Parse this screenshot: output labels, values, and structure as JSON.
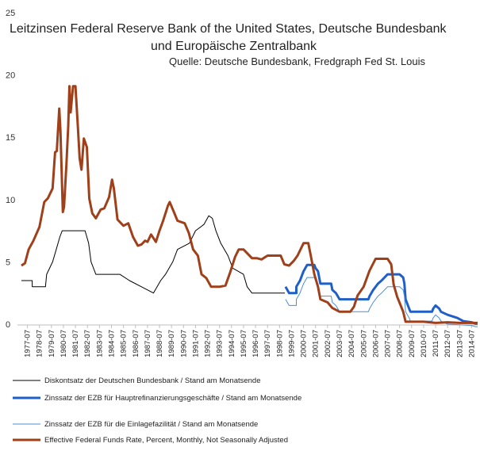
{
  "title_line1": "Leitzinsen Federal Reserve Bank of the United States, Deutsche Bundesbank",
  "title_line2": "und Europäische Zentralbank",
  "source": "Quelle: Deutsche Bundesbank, Fredgraph Fed St. Louis",
  "chart_data": {
    "type": "line",
    "title": "Leitzinsen Federal Reserve Bank of the United States, Deutsche Bundesbank und Europäische Zentralbank",
    "ylim": [
      0,
      25
    ],
    "yticks": [
      0,
      5,
      10,
      15,
      20,
      25
    ],
    "xlim": [
      1977.0,
      2015.0
    ],
    "x_tick_labels": [
      "1977-07",
      "1978-07",
      "1979-07",
      "1980-07",
      "1981-07",
      "1982-07",
      "1983-07",
      "1984-07",
      "1985-07",
      "1986-07",
      "1987-07",
      "1988-07",
      "1989-07",
      "1990-07",
      "1991-07",
      "1992-07",
      "1993-07",
      "1994-07",
      "1995-07",
      "1996-07",
      "1997-07",
      "1998-07",
      "1999-07",
      "2000-07",
      "2001-07",
      "2002-07",
      "2003-07",
      "2004-07",
      "2005-07",
      "2006-07",
      "2007-07",
      "2008-07",
      "2009-07",
      "2010-07",
      "2011-07",
      "2012-07",
      "2013-07",
      "2014-07"
    ],
    "grid": "none",
    "legend_position": "bottom",
    "series": [
      {
        "name": "Diskontsatz der Deutschen Bundesbank / Stand am Monatsende",
        "color": "#000000",
        "width": 1,
        "points": [
          [
            1977.0,
            3.5
          ],
          [
            1977.9,
            3.5
          ],
          [
            1977.9,
            3.0
          ],
          [
            1979.0,
            3.0
          ],
          [
            1979.1,
            4.0
          ],
          [
            1979.6,
            5.0
          ],
          [
            1979.9,
            6.0
          ],
          [
            1980.2,
            7.0
          ],
          [
            1980.4,
            7.5
          ],
          [
            1982.3,
            7.5
          ],
          [
            1982.6,
            6.5
          ],
          [
            1982.8,
            5.0
          ],
          [
            1983.2,
            4.0
          ],
          [
            1985.2,
            4.0
          ],
          [
            1986.0,
            3.5
          ],
          [
            1987.0,
            3.0
          ],
          [
            1988.0,
            2.5
          ],
          [
            1988.6,
            3.5
          ],
          [
            1989.0,
            4.0
          ],
          [
            1989.6,
            5.0
          ],
          [
            1990.0,
            6.0
          ],
          [
            1991.0,
            6.5
          ],
          [
            1991.5,
            7.5
          ],
          [
            1992.2,
            8.0
          ],
          [
            1992.6,
            8.7
          ],
          [
            1992.9,
            8.5
          ],
          [
            1993.2,
            7.5
          ],
          [
            1993.6,
            6.5
          ],
          [
            1994.2,
            5.5
          ],
          [
            1994.6,
            4.5
          ],
          [
            1995.5,
            4.0
          ],
          [
            1995.8,
            3.0
          ],
          [
            1996.2,
            2.5
          ],
          [
            1998.95,
            2.5
          ]
        ]
      },
      {
        "name": "Zinssatz der EZB für Hauptrefinanzierungsgeschäfte / Stand am Monatsende",
        "color": "#1f5fc8",
        "width": 3,
        "points": [
          [
            1999.0,
            3.0
          ],
          [
            1999.3,
            2.5
          ],
          [
            1999.9,
            2.5
          ],
          [
            1999.9,
            3.0
          ],
          [
            2000.2,
            3.5
          ],
          [
            2000.5,
            4.25
          ],
          [
            2000.8,
            4.75
          ],
          [
            2001.4,
            4.75
          ],
          [
            2001.5,
            4.5
          ],
          [
            2001.7,
            4.25
          ],
          [
            2001.9,
            3.25
          ],
          [
            2002.8,
            3.25
          ],
          [
            2002.9,
            2.75
          ],
          [
            2003.2,
            2.5
          ],
          [
            2003.5,
            2.0
          ],
          [
            2005.9,
            2.0
          ],
          [
            2006.0,
            2.25
          ],
          [
            2006.3,
            2.75
          ],
          [
            2006.7,
            3.25
          ],
          [
            2007.0,
            3.5
          ],
          [
            2007.5,
            4.0
          ],
          [
            2008.5,
            4.0
          ],
          [
            2008.8,
            3.75
          ],
          [
            2008.9,
            3.25
          ],
          [
            2009.0,
            2.0
          ],
          [
            2009.3,
            1.25
          ],
          [
            2009.4,
            1.0
          ],
          [
            2011.2,
            1.0
          ],
          [
            2011.3,
            1.25
          ],
          [
            2011.5,
            1.5
          ],
          [
            2011.8,
            1.25
          ],
          [
            2011.95,
            1.0
          ],
          [
            2012.5,
            0.75
          ],
          [
            2013.3,
            0.5
          ],
          [
            2013.8,
            0.25
          ],
          [
            2014.5,
            0.15
          ],
          [
            2014.8,
            0.05
          ],
          [
            2015.0,
            0.05
          ]
        ]
      },
      {
        "name": "Zinssatz der EZB für die Einlagefazilität / Stand am Monatsende",
        "color": "#4a8fd6",
        "width": 1,
        "points": [
          [
            1999.0,
            2.0
          ],
          [
            1999.3,
            1.5
          ],
          [
            1999.9,
            1.5
          ],
          [
            1999.9,
            2.0
          ],
          [
            2000.2,
            2.5
          ],
          [
            2000.5,
            3.25
          ],
          [
            2000.8,
            3.75
          ],
          [
            2001.4,
            3.75
          ],
          [
            2001.5,
            3.5
          ],
          [
            2001.7,
            3.25
          ],
          [
            2001.9,
            2.25
          ],
          [
            2002.8,
            2.25
          ],
          [
            2002.9,
            1.75
          ],
          [
            2003.2,
            1.5
          ],
          [
            2003.5,
            1.0
          ],
          [
            2005.9,
            1.0
          ],
          [
            2006.0,
            1.25
          ],
          [
            2006.3,
            1.75
          ],
          [
            2006.7,
            2.25
          ],
          [
            2007.0,
            2.5
          ],
          [
            2007.5,
            3.0
          ],
          [
            2008.5,
            3.0
          ],
          [
            2008.8,
            2.75
          ],
          [
            2008.9,
            2.25
          ],
          [
            2009.0,
            1.0
          ],
          [
            2009.3,
            0.5
          ],
          [
            2009.4,
            0.25
          ],
          [
            2011.2,
            0.25
          ],
          [
            2011.3,
            0.5
          ],
          [
            2011.5,
            0.75
          ],
          [
            2011.8,
            0.5
          ],
          [
            2011.95,
            0.25
          ],
          [
            2012.5,
            0.0
          ],
          [
            2014.5,
            -0.1
          ],
          [
            2014.8,
            -0.2
          ],
          [
            2015.0,
            -0.2
          ]
        ]
      },
      {
        "name": "Effective Federal Funds Rate, Percent, Monthly, Not Seasonally Adjusted",
        "color": "#a0401a",
        "width": 3,
        "points": [
          [
            1977.0,
            4.7
          ],
          [
            1977.3,
            4.9
          ],
          [
            1977.6,
            6.0
          ],
          [
            1978.0,
            6.7
          ],
          [
            1978.5,
            7.8
          ],
          [
            1978.9,
            9.8
          ],
          [
            1979.2,
            10.1
          ],
          [
            1979.6,
            10.9
          ],
          [
            1979.8,
            13.8
          ],
          [
            1979.95,
            13.9
          ],
          [
            1980.15,
            17.3
          ],
          [
            1980.25,
            15.5
          ],
          [
            1980.45,
            9.0
          ],
          [
            1980.55,
            9.4
          ],
          [
            1980.75,
            12.8
          ],
          [
            1980.9,
            15.9
          ],
          [
            1981.0,
            19.1
          ],
          [
            1981.1,
            17.0
          ],
          [
            1981.3,
            19.1
          ],
          [
            1981.5,
            19.1
          ],
          [
            1981.7,
            15.9
          ],
          [
            1981.85,
            13.3
          ],
          [
            1982.0,
            12.4
          ],
          [
            1982.2,
            14.9
          ],
          [
            1982.45,
            14.2
          ],
          [
            1982.65,
            10.1
          ],
          [
            1982.9,
            8.9
          ],
          [
            1983.2,
            8.5
          ],
          [
            1983.6,
            9.2
          ],
          [
            1983.9,
            9.3
          ],
          [
            1984.3,
            10.2
          ],
          [
            1984.55,
            11.6
          ],
          [
            1984.7,
            10.9
          ],
          [
            1985.0,
            8.4
          ],
          [
            1985.5,
            7.9
          ],
          [
            1985.9,
            8.1
          ],
          [
            1986.3,
            7.0
          ],
          [
            1986.7,
            6.3
          ],
          [
            1987.0,
            6.4
          ],
          [
            1987.3,
            6.7
          ],
          [
            1987.5,
            6.6
          ],
          [
            1987.8,
            7.2
          ],
          [
            1988.2,
            6.6
          ],
          [
            1988.5,
            7.5
          ],
          [
            1988.8,
            8.3
          ],
          [
            1989.2,
            9.5
          ],
          [
            1989.35,
            9.8
          ],
          [
            1989.7,
            9.0
          ],
          [
            1990.0,
            8.3
          ],
          [
            1990.6,
            8.1
          ],
          [
            1990.95,
            7.3
          ],
          [
            1991.3,
            6.0
          ],
          [
            1991.7,
            5.5
          ],
          [
            1992.0,
            4.0
          ],
          [
            1992.4,
            3.7
          ],
          [
            1992.8,
            3.0
          ],
          [
            1993.5,
            3.0
          ],
          [
            1994.0,
            3.1
          ],
          [
            1994.4,
            4.2
          ],
          [
            1994.8,
            5.4
          ],
          [
            1995.1,
            6.0
          ],
          [
            1995.5,
            6.0
          ],
          [
            1995.8,
            5.7
          ],
          [
            1996.2,
            5.3
          ],
          [
            1996.6,
            5.3
          ],
          [
            1997.0,
            5.2
          ],
          [
            1997.5,
            5.5
          ],
          [
            1998.0,
            5.5
          ],
          [
            1998.6,
            5.5
          ],
          [
            1998.9,
            4.8
          ],
          [
            1999.3,
            4.7
          ],
          [
            1999.7,
            5.1
          ],
          [
            2000.0,
            5.5
          ],
          [
            2000.5,
            6.5
          ],
          [
            2000.9,
            6.5
          ],
          [
            2001.1,
            5.5
          ],
          [
            2001.4,
            4.0
          ],
          [
            2001.7,
            3.0
          ],
          [
            2001.9,
            2.0
          ],
          [
            2002.5,
            1.75
          ],
          [
            2002.9,
            1.3
          ],
          [
            2003.5,
            1.0
          ],
          [
            2004.4,
            1.0
          ],
          [
            2004.7,
            1.4
          ],
          [
            2005.0,
            2.3
          ],
          [
            2005.5,
            3.0
          ],
          [
            2006.0,
            4.3
          ],
          [
            2006.5,
            5.25
          ],
          [
            2007.5,
            5.25
          ],
          [
            2007.8,
            4.8
          ],
          [
            2008.0,
            3.2
          ],
          [
            2008.3,
            2.2
          ],
          [
            2008.8,
            1.0
          ],
          [
            2009.0,
            0.2
          ],
          [
            2010.5,
            0.2
          ],
          [
            2011.5,
            0.1
          ],
          [
            2012.5,
            0.15
          ],
          [
            2013.5,
            0.1
          ],
          [
            2015.0,
            0.1
          ]
        ]
      }
    ]
  }
}
